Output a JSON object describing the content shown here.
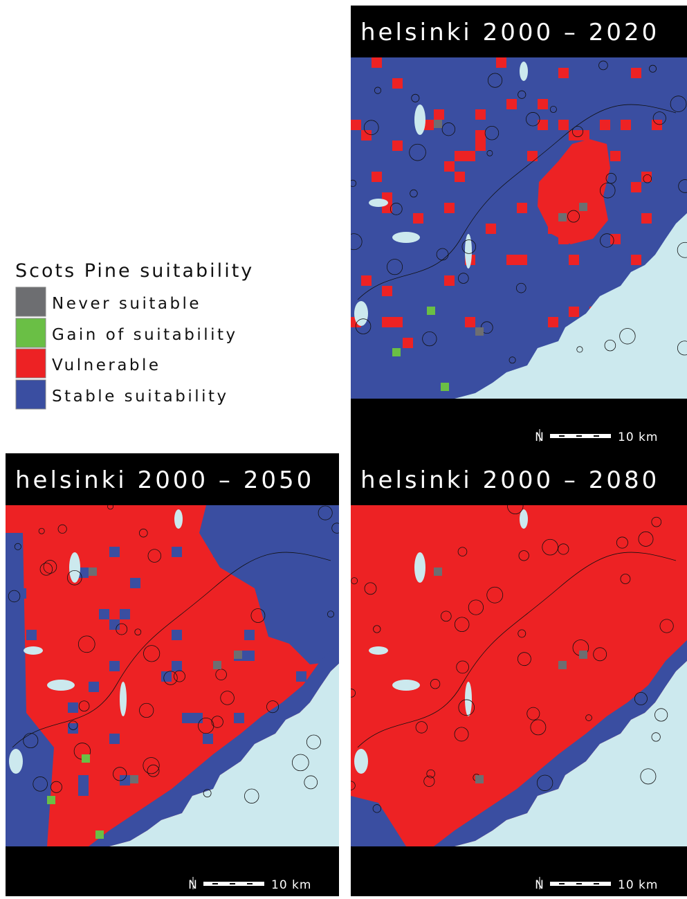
{
  "legend": {
    "title": "Scots Pine suitability",
    "items": [
      {
        "label": "Never suitable",
        "color": "#6d6e71"
      },
      {
        "label": "Gain of suitability",
        "color": "#6abf45"
      },
      {
        "label": "Vulnerable",
        "color": "#ed2224"
      },
      {
        "label": "Stable suitability",
        "color": "#3a4ea1"
      }
    ]
  },
  "sea_color": "#cce9ee",
  "panels": [
    {
      "title": "helsinki 2000 – 2020"
    },
    {
      "title": "helsinki 2000 – 2050"
    },
    {
      "title": "helsinki 2000 – 2080"
    }
  ],
  "north_label": "N",
  "scale_label": "10 km"
}
